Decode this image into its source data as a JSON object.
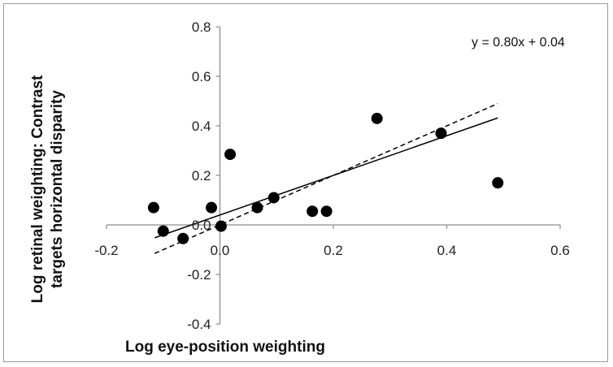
{
  "chart_data": {
    "type": "scatter",
    "title": "",
    "xlabel": "Log eye-position weighting",
    "ylabel_lines": [
      "Log retinal weighting: Contrast",
      "targets horizontal disparity"
    ],
    "xlim": [
      -0.2,
      0.6
    ],
    "ylim": [
      -0.4,
      0.8
    ],
    "x_ticks": [
      -0.2,
      0.0,
      0.2,
      0.4,
      0.6
    ],
    "x_tick_labels": [
      "-0.2",
      "0.0",
      "0.2",
      "0.4",
      "0.6"
    ],
    "y_ticks": [
      -0.4,
      -0.2,
      0.0,
      0.2,
      0.4,
      0.6,
      0.8
    ],
    "y_tick_labels": [
      "-0.4",
      "-0.2",
      "0.0",
      "0.2",
      "0.4",
      "0.6",
      "0.8"
    ],
    "grid": false,
    "points": [
      {
        "x": -0.117,
        "y": 0.07
      },
      {
        "x": -0.1,
        "y": -0.025
      },
      {
        "x": -0.065,
        "y": -0.055
      },
      {
        "x": -0.015,
        "y": 0.07
      },
      {
        "x": 0.002,
        "y": -0.005
      },
      {
        "x": 0.018,
        "y": 0.285
      },
      {
        "x": 0.066,
        "y": 0.07
      },
      {
        "x": 0.095,
        "y": 0.11
      },
      {
        "x": 0.163,
        "y": 0.055
      },
      {
        "x": 0.188,
        "y": 0.055
      },
      {
        "x": 0.277,
        "y": 0.43
      },
      {
        "x": 0.39,
        "y": 0.37
      },
      {
        "x": 0.49,
        "y": 0.17
      }
    ],
    "fit_line": {
      "slope": 0.8,
      "intercept": 0.04,
      "x_range": [
        -0.115,
        0.49
      ],
      "style": "solid"
    },
    "identity_line": {
      "slope": 1.0,
      "intercept": 0.0,
      "x_range": [
        -0.115,
        0.49
      ],
      "style": "dashed"
    },
    "equation_label": "y = 0.80x + 0.04",
    "colors": {
      "points": "#000000",
      "axes": "#8c8c8c",
      "lines": "#000000"
    }
  }
}
